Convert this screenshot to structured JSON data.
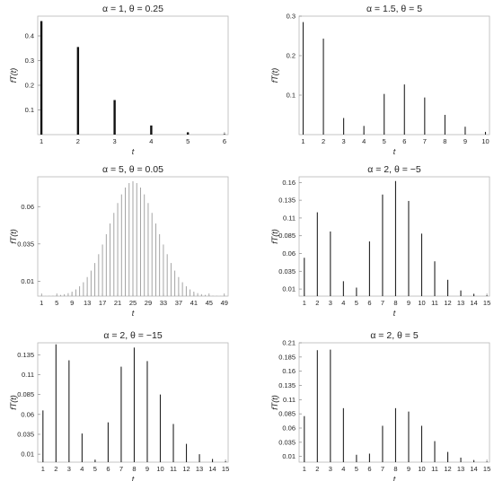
{
  "chart_data": [
    {
      "type": "bar",
      "title": "α = 1,   θ = 0.25",
      "xlabel": "t",
      "ylabel": "fT(t)",
      "x": [
        1,
        2,
        3,
        4,
        5,
        6
      ],
      "values": [
        0.46,
        0.355,
        0.14,
        0.037,
        0.009,
        0.002
      ],
      "xticks": [
        1,
        2,
        3,
        4,
        5,
        6
      ],
      "yticks": [
        "0.1",
        "0.2",
        "0.3",
        "0.4"
      ],
      "xlim": [
        0.9,
        6.1
      ],
      "ylim": [
        0,
        0.48
      ],
      "grid": false,
      "bar_weight": "thick"
    },
    {
      "type": "bar",
      "title": "α = 1.5,   θ = 5",
      "xlabel": "t",
      "ylabel": "fT(t)",
      "x": [
        1,
        2,
        3,
        4,
        5,
        6,
        7,
        8,
        9,
        10
      ],
      "values": [
        0.285,
        0.243,
        0.042,
        0.022,
        0.103,
        0.127,
        0.094,
        0.05,
        0.02,
        0.007
      ],
      "xticks": [
        1,
        2,
        3,
        4,
        5,
        6,
        7,
        8,
        9,
        10
      ],
      "yticks": [
        "0.1",
        "0.2",
        "0.3"
      ],
      "xlim": [
        0.8,
        10.2
      ],
      "ylim": [
        0,
        0.3
      ],
      "grid": false,
      "bar_weight": "thin"
    },
    {
      "type": "bar",
      "title": "α = 5,   θ = 0.05",
      "xlabel": "t",
      "ylabel": "fT(t)",
      "x": [
        1,
        2,
        3,
        4,
        5,
        6,
        7,
        8,
        9,
        10,
        11,
        12,
        13,
        14,
        15,
        16,
        17,
        18,
        19,
        20,
        21,
        22,
        23,
        24,
        25,
        26,
        27,
        28,
        29,
        30,
        31,
        32,
        33,
        34,
        35,
        36,
        37,
        38,
        39,
        40,
        41,
        42,
        43,
        44,
        45,
        46,
        47,
        48,
        49
      ],
      "values": [
        0.0001,
        0.0001,
        0.0002,
        0.0003,
        0.0005,
        0.0008,
        0.0013,
        0.002,
        0.003,
        0.0045,
        0.0066,
        0.0093,
        0.0128,
        0.0171,
        0.0222,
        0.0281,
        0.0346,
        0.0415,
        0.0487,
        0.0558,
        0.0624,
        0.0682,
        0.0728,
        0.0758,
        0.077,
        0.0758,
        0.0728,
        0.0682,
        0.0624,
        0.0558,
        0.0487,
        0.0415,
        0.0346,
        0.0281,
        0.0222,
        0.0171,
        0.0128,
        0.0093,
        0.0066,
        0.0045,
        0.003,
        0.002,
        0.0013,
        0.0008,
        0.0005,
        0.0003,
        0.0002,
        0.0001,
        0.0001
      ],
      "xticks": [
        1,
        5,
        9,
        13,
        17,
        21,
        25,
        29,
        33,
        37,
        41,
        45,
        49
      ],
      "yticks": [
        "0.01",
        "0.035",
        "0.06"
      ],
      "ytick_values": [
        0.01,
        0.035,
        0.06
      ],
      "xlim": [
        0,
        50
      ],
      "ylim": [
        0,
        0.08
      ],
      "grid": false,
      "bar_weight": "hairline"
    },
    {
      "type": "bar",
      "title": "α = 2,   θ = −5",
      "xlabel": "t",
      "ylabel": "fT(t)",
      "x": [
        1,
        2,
        3,
        4,
        5,
        6,
        7,
        8,
        9,
        10,
        11,
        12,
        13,
        14,
        15
      ],
      "values": [
        0.054,
        0.118,
        0.091,
        0.021,
        0.012,
        0.077,
        0.143,
        0.162,
        0.134,
        0.088,
        0.049,
        0.023,
        0.008,
        0.003,
        0.001
      ],
      "xticks": [
        1,
        2,
        3,
        4,
        5,
        6,
        7,
        8,
        9,
        10,
        11,
        12,
        13,
        14,
        15
      ],
      "yticks": [
        "0.01",
        "0.035",
        "0.06",
        "0.085",
        "0.11",
        "0.135",
        "0.16"
      ],
      "ytick_values": [
        0.01,
        0.035,
        0.06,
        0.085,
        0.11,
        0.135,
        0.16
      ],
      "xlim": [
        0.6,
        15.2
      ],
      "ylim": [
        0,
        0.168
      ],
      "grid": false,
      "bar_weight": "thin"
    },
    {
      "type": "bar",
      "title": "α = 2,   θ = −15",
      "xlabel": "t",
      "ylabel": "fT(t)",
      "x": [
        1,
        2,
        3,
        4,
        5,
        6,
        7,
        8,
        9,
        10,
        11,
        12,
        13,
        14,
        15
      ],
      "values": [
        0.065,
        0.148,
        0.128,
        0.036,
        0.003,
        0.05,
        0.12,
        0.144,
        0.127,
        0.085,
        0.048,
        0.023,
        0.01,
        0.004,
        0.001
      ],
      "xticks": [
        1,
        2,
        3,
        4,
        5,
        6,
        7,
        8,
        9,
        10,
        11,
        12,
        13,
        14,
        15
      ],
      "yticks": [
        "0.01",
        "0.035",
        "0.06",
        "0.085",
        "0.11",
        "0.135"
      ],
      "ytick_values": [
        0.01,
        0.035,
        0.06,
        0.085,
        0.11,
        0.135
      ],
      "xlim": [
        0.6,
        15.2
      ],
      "ylim": [
        0,
        0.15
      ],
      "grid": false,
      "bar_weight": "thin"
    },
    {
      "type": "bar",
      "title": "α = 2,   θ = 5",
      "xlabel": "t",
      "ylabel": "fT(t)",
      "x": [
        1,
        2,
        3,
        4,
        5,
        6,
        7,
        8,
        9,
        10,
        11,
        12,
        13,
        14,
        15
      ],
      "values": [
        0.081,
        0.197,
        0.198,
        0.095,
        0.013,
        0.015,
        0.064,
        0.095,
        0.089,
        0.064,
        0.037,
        0.018,
        0.008,
        0.003,
        0.001
      ],
      "xticks": [
        1,
        2,
        3,
        4,
        5,
        6,
        7,
        8,
        9,
        10,
        11,
        12,
        13,
        14,
        15
      ],
      "yticks": [
        "0.01",
        "0.035",
        "0.06",
        "0.085",
        "0.11",
        "0.135",
        "0.16",
        "0.185",
        "0.21"
      ],
      "ytick_values": [
        0.01,
        0.035,
        0.06,
        0.085,
        0.11,
        0.135,
        0.16,
        0.185,
        0.21
      ],
      "xlim": [
        0.6,
        15.2
      ],
      "ylim": [
        0,
        0.21
      ],
      "grid": false,
      "bar_weight": "thin"
    }
  ]
}
